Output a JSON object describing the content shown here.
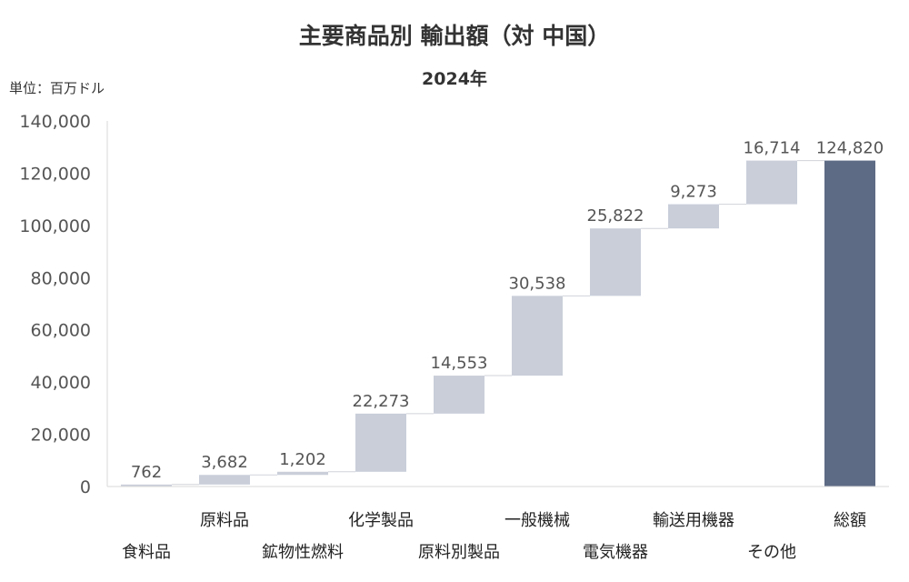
{
  "chart_data": {
    "type": "bar",
    "subtype": "waterfall",
    "title": "主要商品別 輸出額（対 中国）",
    "subtitle": "2024年",
    "unit_label": "単位：百万ドル",
    "ylim": [
      0,
      140000
    ],
    "yticks": [
      "0",
      "20,000",
      "40,000",
      "60,000",
      "80,000",
      "100,000",
      "120,000",
      "140,000"
    ],
    "ytick_values": [
      0,
      20000,
      40000,
      60000,
      80000,
      100000,
      120000,
      140000
    ],
    "grid": false,
    "legend": "none",
    "categories": [
      "食料品",
      "原料品",
      "鉱物性燃料",
      "化学製品",
      "原料別製品",
      "一般機械",
      "電気機器",
      "輸送用機器",
      "その他",
      "総額"
    ],
    "values": [
      762,
      3682,
      1202,
      22273,
      14553,
      30538,
      25822,
      9273,
      16714,
      124820
    ],
    "value_labels": [
      "762",
      "3,682",
      "1,202",
      "22,273",
      "14,553",
      "30,538",
      "25,822",
      "9,273",
      "16,714",
      "124,820"
    ],
    "total_index": 9,
    "colors": {
      "increment": "#C9CED9",
      "total": "#5E6B85",
      "connector": "#D0D3DA",
      "axis": "#D9D9D9"
    }
  }
}
